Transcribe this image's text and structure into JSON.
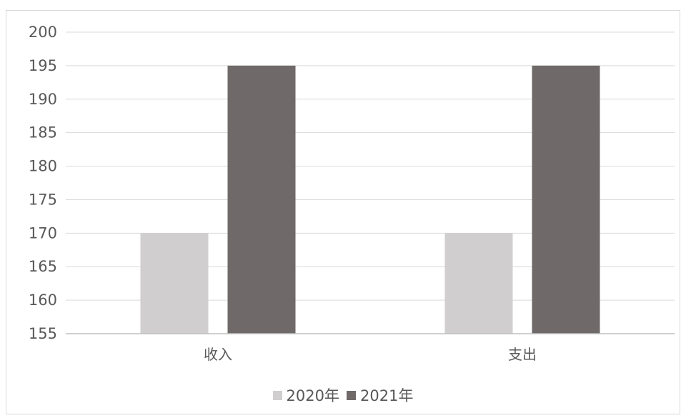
{
  "chart_data": {
    "type": "bar",
    "title": "",
    "xlabel": "",
    "ylabel": "",
    "categories": [
      "收入",
      "支出"
    ],
    "series": [
      {
        "name": "2020年",
        "values": [
          170,
          170
        ],
        "color": "#d0cece"
      },
      {
        "name": "2021年",
        "values": [
          195,
          195
        ],
        "color": "#6f6a69"
      }
    ],
    "ylim": [
      155,
      200
    ],
    "yticks": [
      155,
      160,
      165,
      170,
      175,
      180,
      185,
      190,
      195,
      200
    ],
    "grid": true,
    "legend_position": "bottom"
  }
}
